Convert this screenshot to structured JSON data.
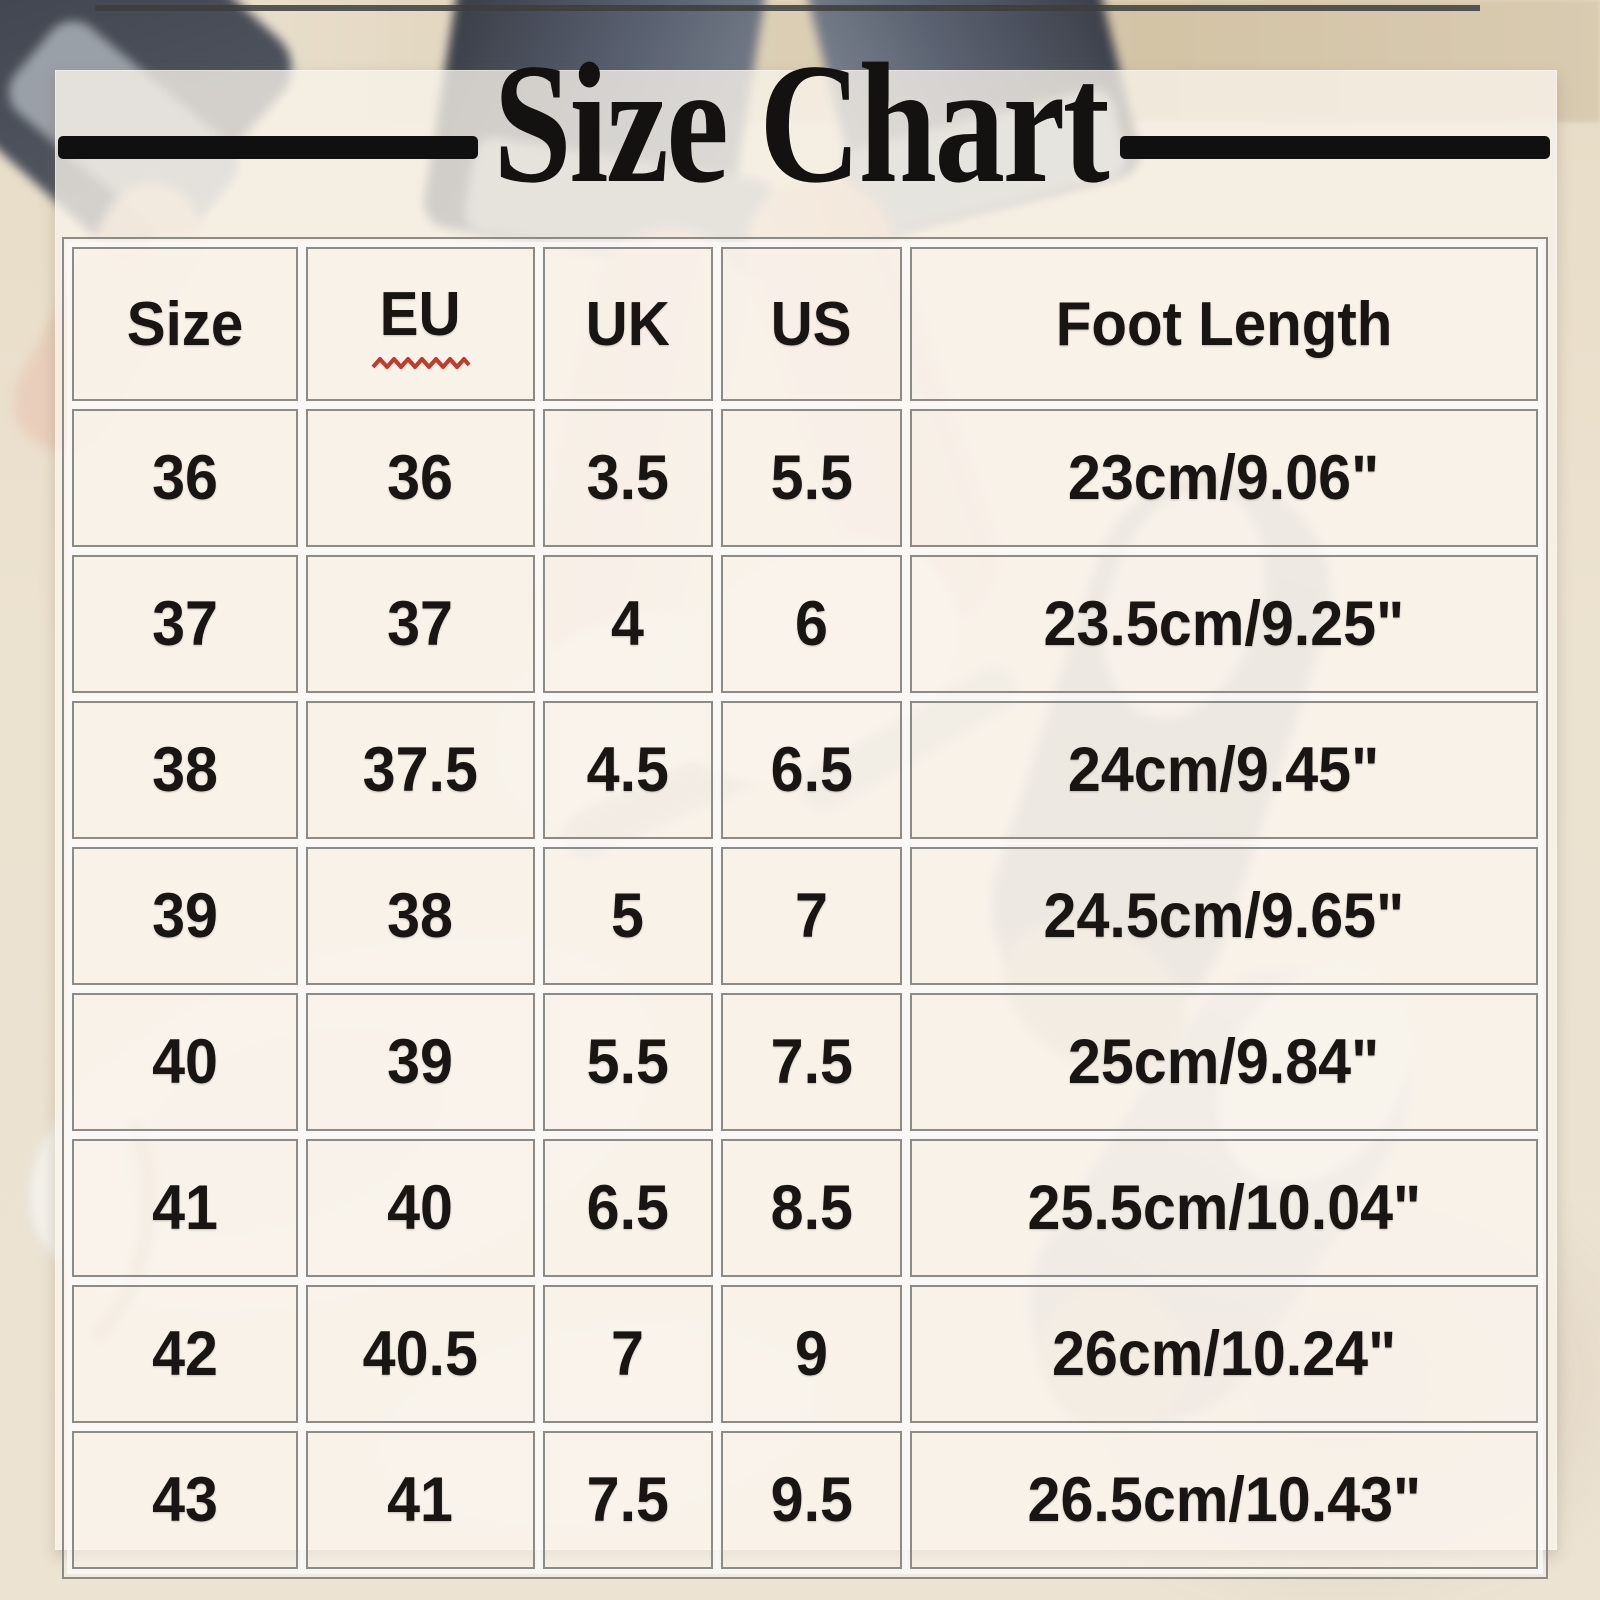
{
  "title": "Size Chart",
  "colors": {
    "title_text": "#141210",
    "title_rule": "#101010",
    "table_border": "#8d8b86",
    "cell_text": "#181512",
    "squiggle_red": "#c23a2a",
    "panel_ivory": "#f8f3ea",
    "background_tan": "#d9cbb1",
    "background_cream": "#ece3d3"
  },
  "size_table": {
    "headers": [
      {
        "label": "Size"
      },
      {
        "label": "EU",
        "squiggle": true
      },
      {
        "label": "UK"
      },
      {
        "label": "US"
      },
      {
        "label": "Foot Length"
      }
    ],
    "rows": [
      [
        "36",
        "36",
        "3.5",
        "5.5",
        "23cm/9.06\""
      ],
      [
        "37",
        "37",
        "4",
        "6",
        "23.5cm/9.25\""
      ],
      [
        "38",
        "37.5",
        "4.5",
        "6.5",
        "24cm/9.45\""
      ],
      [
        "39",
        "38",
        "5",
        "7",
        "24.5cm/9.65\""
      ],
      [
        "40",
        "39",
        "5.5",
        "7.5",
        "25cm/9.84\""
      ],
      [
        "41",
        "40",
        "6.5",
        "8.5",
        "25.5cm/10.04\""
      ],
      [
        "42",
        "40.5",
        "7",
        "9",
        "26cm/10.24\""
      ],
      [
        "43",
        "41",
        "7.5",
        "9.5",
        "26.5cm/10.43\""
      ]
    ]
  },
  "chart_data": {
    "type": "table",
    "title": "Size Chart",
    "columns": [
      "Size",
      "EU",
      "UK",
      "US",
      "Foot Length"
    ],
    "rows": [
      [
        "36",
        "36",
        "3.5",
        "5.5",
        "23cm/9.06\""
      ],
      [
        "37",
        "37",
        "4",
        "6",
        "23.5cm/9.25\""
      ],
      [
        "38",
        "37.5",
        "4.5",
        "6.5",
        "24cm/9.45\""
      ],
      [
        "39",
        "38",
        "5",
        "7",
        "24.5cm/9.65\""
      ],
      [
        "40",
        "39",
        "5.5",
        "7.5",
        "25cm/9.84\""
      ],
      [
        "41",
        "40",
        "6.5",
        "8.5",
        "25.5cm/10.04\""
      ],
      [
        "42",
        "40.5",
        "7",
        "9",
        "26cm/10.24\""
      ],
      [
        "43",
        "41",
        "7.5",
        "9.5",
        "26.5cm/10.43\""
      ]
    ],
    "notes": "Shoe size conversion chart overlaid on product photo of loafers"
  }
}
